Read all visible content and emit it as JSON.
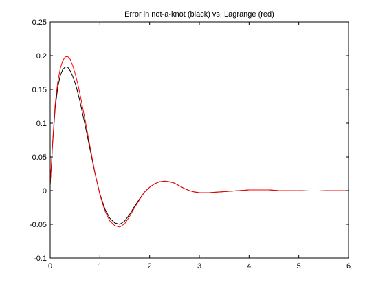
{
  "chart_data": {
    "type": "line",
    "title": "Error in not-a-knot (black) vs. Lagrange (red)",
    "xlabel": "",
    "ylabel": "",
    "xlim": [
      0,
      6
    ],
    "ylim": [
      -0.1,
      0.25
    ],
    "xticks": [
      0,
      1,
      2,
      3,
      4,
      5,
      6
    ],
    "xtick_labels": [
      "0",
      "1",
      "2",
      "3",
      "4",
      "5",
      "6"
    ],
    "yticks": [
      -0.1,
      -0.05,
      0,
      0.05,
      0.1,
      0.15,
      0.2,
      0.25
    ],
    "ytick_labels": [
      "-0.1",
      "-0.05",
      "0",
      "0.05",
      "0.1",
      "0.15",
      "0.2",
      "0.25"
    ],
    "grid": false,
    "legend": "none",
    "series": [
      {
        "color": "#000000",
        "x": [
          0,
          0.05,
          0.1,
          0.15,
          0.2,
          0.25,
          0.3,
          0.35,
          0.4,
          0.45,
          0.5,
          0.55,
          0.6,
          0.7,
          0.8,
          0.9,
          1.0,
          1.1,
          1.2,
          1.3,
          1.4,
          1.5,
          1.6,
          1.7,
          1.8,
          1.9,
          2.0,
          2.1,
          2.2,
          2.3,
          2.4,
          2.5,
          2.6,
          2.7,
          2.8,
          2.9,
          3.0,
          3.2,
          3.4,
          3.6,
          3.8,
          4.0,
          4.2,
          4.4,
          4.6,
          4.8,
          5.0,
          5.2,
          5.4,
          5.6,
          5.8,
          6.0
        ],
        "y": [
          0.008,
          0.07,
          0.122,
          0.152,
          0.17,
          0.179,
          0.183,
          0.183,
          0.178,
          0.17,
          0.16,
          0.147,
          0.132,
          0.098,
          0.062,
          0.026,
          -0.005,
          -0.027,
          -0.041,
          -0.048,
          -0.05,
          -0.045,
          -0.035,
          -0.023,
          -0.012,
          -0.002,
          0.005,
          0.01,
          0.013,
          0.014,
          0.013,
          0.011,
          0.007,
          0.003,
          0.0,
          -0.002,
          -0.003,
          -0.003,
          -0.002,
          -0.001,
          0.0,
          0.001,
          0.001,
          0.001,
          0.0,
          0.0,
          0.0,
          -0.0005,
          -0.0005,
          0.0,
          0.0,
          0.0
        ]
      },
      {
        "color": "#ff0000",
        "x": [
          0,
          0.05,
          0.1,
          0.15,
          0.2,
          0.25,
          0.3,
          0.35,
          0.4,
          0.45,
          0.5,
          0.55,
          0.6,
          0.7,
          0.8,
          0.9,
          1.0,
          1.1,
          1.2,
          1.3,
          1.4,
          1.5,
          1.6,
          1.7,
          1.8,
          1.9,
          2.0,
          2.1,
          2.2,
          2.3,
          2.4,
          2.5,
          2.6,
          2.7,
          2.8,
          2.9,
          3.0,
          3.2,
          3.4,
          3.6,
          3.8,
          4.0,
          4.2,
          4.4,
          4.6,
          4.8,
          5.0,
          5.2,
          5.4,
          5.6,
          5.8,
          6.0
        ],
        "y": [
          0.008,
          0.072,
          0.128,
          0.16,
          0.18,
          0.192,
          0.198,
          0.199,
          0.195,
          0.186,
          0.174,
          0.16,
          0.143,
          0.106,
          0.066,
          0.027,
          -0.006,
          -0.03,
          -0.045,
          -0.052,
          -0.054,
          -0.049,
          -0.038,
          -0.025,
          -0.013,
          -0.002,
          0.005,
          0.01,
          0.013,
          0.014,
          0.013,
          0.011,
          0.007,
          0.003,
          0.0,
          -0.002,
          -0.003,
          -0.003,
          -0.002,
          -0.001,
          0.0,
          0.001,
          0.001,
          0.001,
          0.0,
          0.0,
          0.0,
          -0.0005,
          -0.0005,
          0.0,
          0.0,
          0.0
        ]
      }
    ]
  }
}
